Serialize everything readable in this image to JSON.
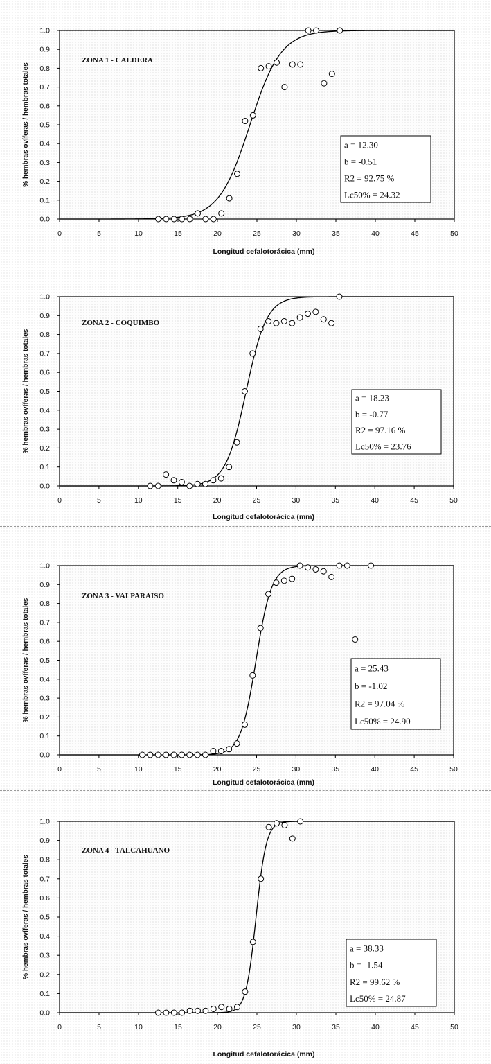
{
  "chart_data": [
    {
      "type": "scatter",
      "title": "ZONA 1 - CALDERA",
      "xlabel": "Longitud cefalotorácica (mm)",
      "ylabel": "% hembras ovíferas / hembras totales",
      "xlim": [
        0,
        50
      ],
      "ylim": [
        0,
        1.0
      ],
      "xticks": [
        "0",
        "5",
        "10",
        "15",
        "20",
        "25",
        "30",
        "35",
        "40",
        "45",
        "50"
      ],
      "yticks": [
        "0.0",
        "0.1",
        "0.2",
        "0.3",
        "0.4",
        "0.5",
        "0.6",
        "0.7",
        "0.8",
        "0.9",
        "1.0"
      ],
      "stats": [
        "a  = 12.30",
        "b  = -0.51",
        "R2  =  92.75 %",
        "Lc50% =  24.32"
      ],
      "fit": {
        "model": "logistic",
        "a": 12.3,
        "b": -0.51
      },
      "points": {
        "x": [
          12.5,
          13.5,
          14.5,
          15.5,
          16.5,
          17.5,
          18.5,
          19.5,
          20.5,
          21.5,
          22.5,
          23.5,
          24.5,
          25.5,
          26.5,
          27.5,
          28.5,
          29.5,
          30.5,
          31.5,
          32.5,
          33.5,
          34.5,
          35.5
        ],
        "y": [
          0.0,
          0.0,
          0.0,
          0.0,
          0.0,
          0.03,
          0.0,
          0.0,
          0.03,
          0.11,
          0.24,
          0.52,
          0.55,
          0.8,
          0.81,
          0.83,
          0.7,
          0.82,
          0.82,
          1.0,
          1.0,
          0.72,
          0.77,
          1.0
        ]
      }
    },
    {
      "type": "scatter",
      "title": "ZONA 2 - COQUIMBO",
      "xlabel": "Longitud cefalotorácica (mm)",
      "ylabel": "% hembras ovíferas / hembras totales",
      "xlim": [
        0,
        50
      ],
      "ylim": [
        0,
        1.0
      ],
      "xticks": [
        "0",
        "5",
        "10",
        "15",
        "20",
        "25",
        "30",
        "35",
        "40",
        "45",
        "50"
      ],
      "yticks": [
        "0.0",
        "0.1",
        "0.2",
        "0.3",
        "0.4",
        "0.5",
        "0.6",
        "0.7",
        "0.8",
        "0.9",
        "1.0"
      ],
      "stats": [
        "a  = 18.23",
        "b  = -0.77",
        "R2  =  97.16 %",
        "Lc50% =  23.76"
      ],
      "fit": {
        "model": "logistic",
        "a": 18.23,
        "b": -0.77
      },
      "points": {
        "x": [
          11.5,
          12.5,
          13.5,
          14.5,
          15.5,
          16.5,
          17.5,
          18.5,
          19.5,
          20.5,
          21.5,
          22.5,
          23.5,
          24.5,
          25.5,
          26.5,
          27.5,
          28.5,
          29.5,
          30.5,
          31.5,
          32.5,
          33.5,
          34.5,
          35.5
        ],
        "y": [
          0.0,
          0.0,
          0.06,
          0.03,
          0.02,
          0.0,
          0.01,
          0.01,
          0.03,
          0.04,
          0.1,
          0.23,
          0.5,
          0.7,
          0.83,
          0.87,
          0.86,
          0.87,
          0.86,
          0.89,
          0.91,
          0.92,
          0.88,
          0.86,
          1.0
        ]
      }
    },
    {
      "type": "scatter",
      "title": "ZONA 3 - VALPARAISO",
      "xlabel": "Longitud cefalotorácica (mm)",
      "ylabel": "% hembras ovíferas / hembras totales",
      "xlim": [
        0,
        50
      ],
      "ylim": [
        0,
        1.0
      ],
      "xticks": [
        "0",
        "5",
        "10",
        "15",
        "20",
        "25",
        "30",
        "35",
        "40",
        "45",
        "50"
      ],
      "yticks": [
        "0.0",
        "0.1",
        "0.2",
        "0.3",
        "0.4",
        "0.5",
        "0.6",
        "0.7",
        "0.8",
        "0.9",
        "1.0"
      ],
      "stats": [
        "a  = 25.43",
        "b  = -1.02",
        "R2  =  97.04 %",
        "Lc50% =  24.90"
      ],
      "fit": {
        "model": "logistic",
        "a": 25.43,
        "b": -1.02
      },
      "points": {
        "x": [
          10.5,
          11.5,
          12.5,
          13.5,
          14.5,
          15.5,
          16.5,
          17.5,
          18.5,
          19.5,
          20.5,
          21.5,
          22.5,
          23.5,
          24.5,
          25.5,
          26.5,
          27.5,
          28.5,
          29.5,
          30.5,
          31.5,
          32.5,
          33.5,
          34.5,
          35.5,
          36.5,
          37.5,
          39.5
        ],
        "y": [
          0.0,
          0.0,
          0.0,
          0.0,
          0.0,
          0.0,
          0.0,
          0.0,
          0.0,
          0.02,
          0.02,
          0.03,
          0.06,
          0.16,
          0.42,
          0.67,
          0.85,
          0.91,
          0.92,
          0.93,
          1.0,
          0.99,
          0.98,
          0.97,
          0.94,
          1.0,
          1.0,
          0.61,
          1.0
        ]
      }
    },
    {
      "type": "scatter",
      "title": "ZONA 4 - TALCAHUANO",
      "xlabel": "Longitud cefalotorácica (mm)",
      "ylabel": "% hembras ovíferas / hembras totales",
      "xlim": [
        0,
        50
      ],
      "ylim": [
        0,
        1.0
      ],
      "xticks": [
        "0",
        "5",
        "10",
        "15",
        "20",
        "25",
        "30",
        "35",
        "40",
        "45",
        "50"
      ],
      "yticks": [
        "0.0",
        "0.1",
        "0.2",
        "0.3",
        "0.4",
        "0.5",
        "0.6",
        "0.7",
        "0.8",
        "0.9",
        "1.0"
      ],
      "stats": [
        "a  = 38.33",
        "b  = -1.54",
        "R2  =  99.62 %",
        "Lc50% =  24.87"
      ],
      "fit": {
        "model": "logistic",
        "a": 38.33,
        "b": -1.54
      },
      "points": {
        "x": [
          12.5,
          13.5,
          14.5,
          15.5,
          16.5,
          17.5,
          18.5,
          19.5,
          20.5,
          21.5,
          22.5,
          23.5,
          24.5,
          25.5,
          26.5,
          27.5,
          28.5,
          29.5,
          30.5
        ],
        "y": [
          0.0,
          0.0,
          0.0,
          0.0,
          0.01,
          0.01,
          0.01,
          0.02,
          0.03,
          0.02,
          0.03,
          0.11,
          0.37,
          0.7,
          0.97,
          0.99,
          0.98,
          0.91,
          1.0
        ]
      }
    }
  ]
}
